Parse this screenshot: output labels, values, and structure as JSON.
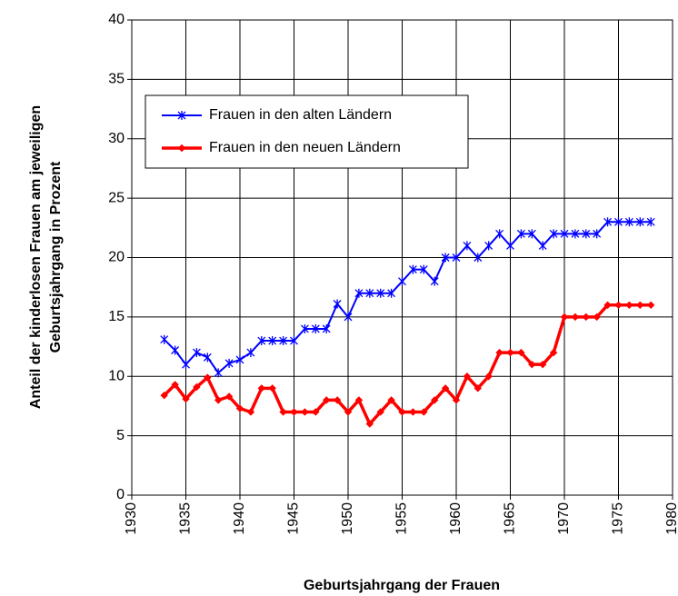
{
  "chart_data": {
    "type": "line",
    "xlabel": "Geburtsjahrgang der Frauen",
    "ylabel": [
      "Anteil der kinderlosen Frauen am jeweiligen",
      "Geburtsjahrgang in Prozent"
    ],
    "x": [
      1933,
      1934,
      1935,
      1936,
      1937,
      1938,
      1939,
      1940,
      1941,
      1942,
      1943,
      1944,
      1945,
      1946,
      1947,
      1948,
      1949,
      1950,
      1951,
      1952,
      1953,
      1954,
      1955,
      1956,
      1957,
      1958,
      1959,
      1960,
      1961,
      1962,
      1963,
      1964,
      1965,
      1966,
      1967,
      1968,
      1969,
      1970,
      1971,
      1972,
      1973,
      1974,
      1975,
      1976,
      1977,
      1978
    ],
    "series": [
      {
        "name": "Frauen in den alten Ländern",
        "color": "#0000ff",
        "marker": "asterisk",
        "values": [
          13.1,
          12.2,
          11,
          12,
          11.6,
          10.3,
          11.1,
          11.4,
          12,
          13,
          13,
          13,
          13,
          14,
          14,
          14,
          16.1,
          15,
          17,
          17,
          17,
          17,
          18,
          19,
          19,
          18,
          20,
          20,
          21,
          20,
          21,
          22,
          21,
          22,
          22,
          21,
          22,
          22,
          22,
          22,
          22,
          23,
          23,
          23,
          23,
          23
        ]
      },
      {
        "name": "Frauen in den neuen Ländern",
        "color": "#ff0000",
        "marker": "diamond",
        "values": [
          8.4,
          9.3,
          8.1,
          9.1,
          9.9,
          8,
          8.3,
          7.3,
          7,
          9,
          9,
          7,
          7,
          7,
          7,
          8,
          8,
          7,
          8,
          6,
          7,
          8,
          7,
          7,
          7,
          8,
          9,
          8,
          10,
          9,
          10,
          12,
          12,
          12,
          11,
          11,
          12,
          15,
          15,
          15,
          15,
          16,
          16,
          16,
          16,
          16
        ]
      }
    ],
    "xlim": [
      1930,
      1980
    ],
    "xticks": [
      1930,
      1935,
      1940,
      1945,
      1950,
      1955,
      1960,
      1965,
      1970,
      1975,
      1980
    ],
    "ylim": [
      0,
      40
    ],
    "yticks": [
      0,
      5,
      10,
      15,
      20,
      25,
      30,
      35,
      40
    ],
    "grid": true,
    "legend": "upper left"
  }
}
